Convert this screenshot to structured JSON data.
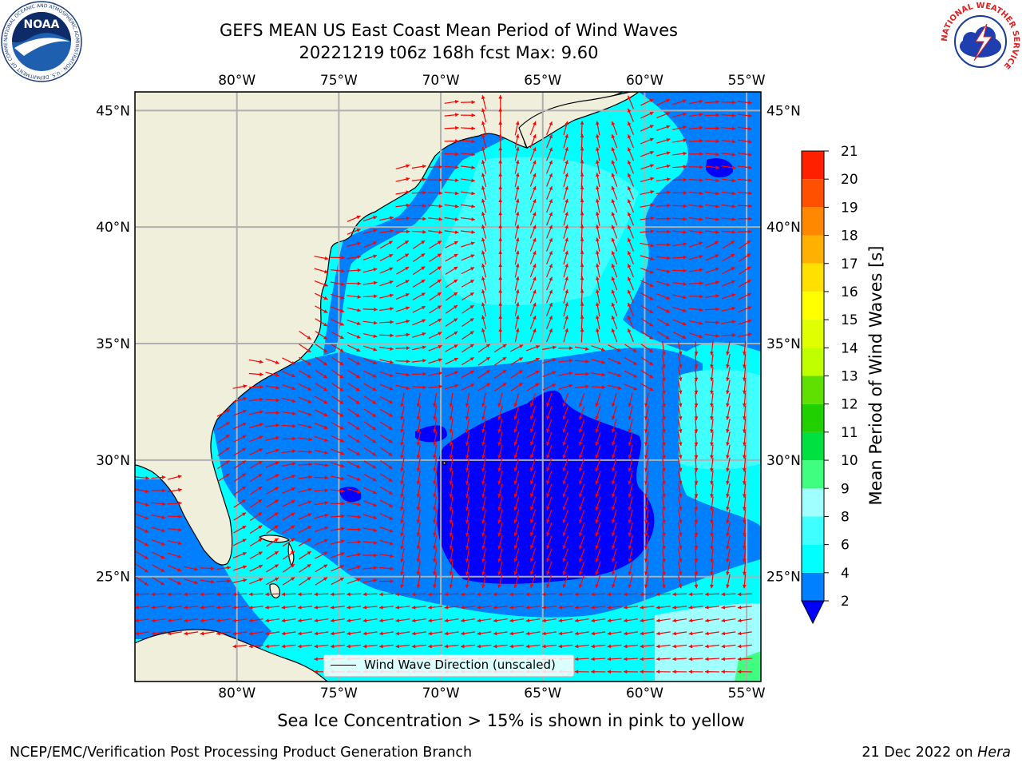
{
  "header": {
    "title_line1": "GEFS MEAN US East Coast Mean Period of Wind Waves",
    "title_line2": "20221219 t06z 168h fcst   Max: 9.60"
  },
  "map": {
    "projection": "PlateCarree",
    "extent": {
      "lon_min": -85,
      "lon_max": -54.3,
      "lat_min": 20.5,
      "lat_max": 45.8
    },
    "lon_ticks": [
      "80°W",
      "75°W",
      "70°W",
      "65°W",
      "60°W",
      "55°W"
    ],
    "lat_ticks": [
      "45°N",
      "40°N",
      "35°N",
      "30°N",
      "25°N"
    ],
    "gridlines": true,
    "land_color": "#efefdb",
    "arrow_color": "#ff0000",
    "legend": {
      "label": "Wind Wave Direction (unscaled)",
      "placement": "lower-center"
    }
  },
  "colorbar": {
    "label": "Mean Period of Wind Waves [s]",
    "ticks": [
      "2",
      "4",
      "6",
      "8",
      "9",
      "10",
      "11",
      "12",
      "13",
      "14",
      "15",
      "16",
      "17",
      "18",
      "19",
      "20",
      "21"
    ],
    "colors": [
      "#0080ff",
      "#00ffff",
      "#40ffff",
      "#a0ffff",
      "#40ff80",
      "#00e040",
      "#20d000",
      "#60e000",
      "#c0ff00",
      "#e0ff00",
      "#ffff00",
      "#ffe000",
      "#ffb000",
      "#ff8800",
      "#ff5000",
      "#ff2000"
    ],
    "under_color": "#0000ff"
  },
  "subtitle": "Sea Ice Concentration > 15% is shown in pink to yellow",
  "footer": {
    "left": "NCEP/EMC/Verification Post Processing Product Generation Branch",
    "right_prefix": "21 Dec 2022 on ",
    "right_host": "Hera"
  },
  "logos": {
    "noaa_text": "NOAA",
    "noaa_ring": "NATIONAL OCEANIC AND ATMOSPHERIC ADMINISTRATION · U.S. DEPARTMENT OF COMMERCE",
    "nws_ring": "NATIONAL WEATHER SERVICE"
  }
}
